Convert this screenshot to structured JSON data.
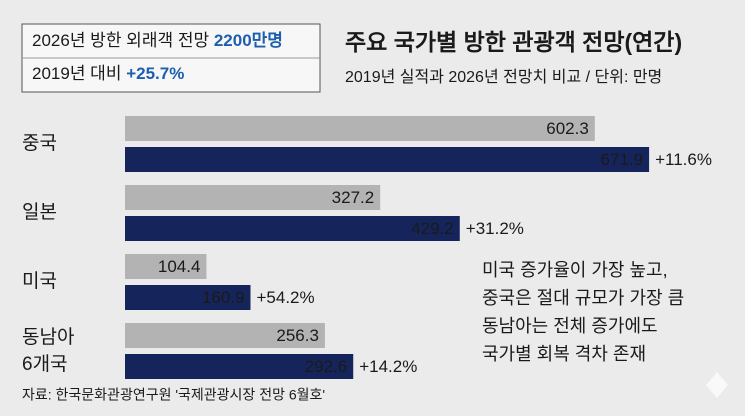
{
  "chart_data": {
    "type": "bar",
    "orientation": "horizontal",
    "title": "주요 국가별 방한 관광객 전망(연간)",
    "subtitle": "2019년 실적과 2026년 전망치 비교 / 단위: 만명",
    "highlight": {
      "line1": "2026년 방한 외래객 전망",
      "value1": "2200만명",
      "line2": "2019년 대비",
      "value2": "+25.7%"
    },
    "categories": [
      "중국",
      "일본",
      "미국",
      "동남아\n6개국"
    ],
    "series": [
      {
        "color": "#b3b3b3",
        "values": [
          602.3,
          327.2,
          104.4,
          256.3
        ]
      },
      {
        "color": "#15255c",
        "values": [
          671.9,
          429.2,
          160.9,
          292.6
        ]
      }
    ],
    "growth_labels": [
      "+11.6%",
      "+31.2%",
      "+54.2%",
      "+14.2%"
    ],
    "annotation": [
      "미국 증가율이 가장 높고,",
      "중국은 절대 규모가 가장 큼",
      "동남아는 전체 증가에도",
      "국가별 회복 격차 존재"
    ],
    "source": "자료: 한국문화관광연구원 '국제관광시장 전망 6월호'"
  }
}
